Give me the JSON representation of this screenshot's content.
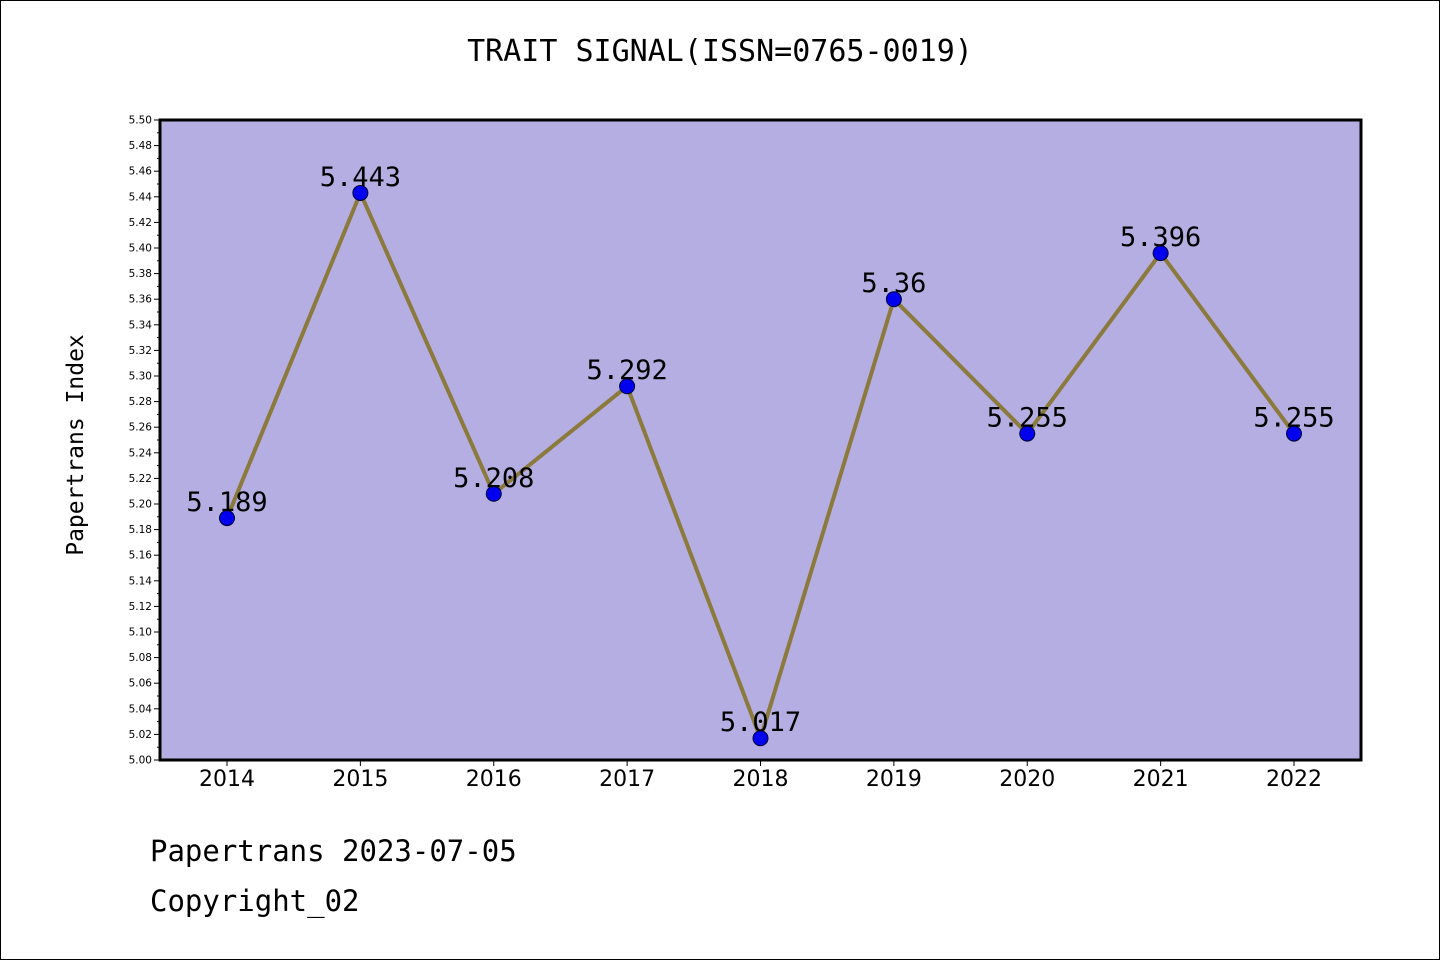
{
  "chart_data": {
    "type": "line",
    "title": "TRAIT SIGNAL(ISSN=0765-0019)",
    "xlabel": "",
    "ylabel": "Papertrans Index",
    "categories": [
      "2014",
      "2015",
      "2016",
      "2017",
      "2018",
      "2019",
      "2020",
      "2021",
      "2022"
    ],
    "series": [
      {
        "values": [
          5.189,
          5.443,
          5.208,
          5.292,
          5.017,
          5.36,
          5.255,
          5.396,
          5.255
        ]
      }
    ],
    "data_labels": [
      "5.189",
      "5.443",
      "5.208",
      "5.292",
      "5.017",
      "5.36",
      "5.255",
      "5.396",
      "5.255"
    ],
    "ylim": [
      5.0,
      5.5
    ],
    "yticks": [
      "5.00",
      "5.02",
      "5.04",
      "5.06",
      "5.08",
      "5.10",
      "5.12",
      "5.14",
      "5.16",
      "5.18",
      "5.20",
      "5.22",
      "5.24",
      "5.26",
      "5.28",
      "5.30",
      "5.32",
      "5.34",
      "5.36",
      "5.38",
      "5.40",
      "5.42",
      "5.44",
      "5.46",
      "5.48",
      "5.50"
    ],
    "grid": false,
    "colors": {
      "plot_background": "#b4aee2",
      "line": "#8b7a3c",
      "marker": "#0000ee"
    }
  },
  "footer": {
    "line1": "Papertrans 2023-07-05",
    "line2": "Copyright_02"
  }
}
